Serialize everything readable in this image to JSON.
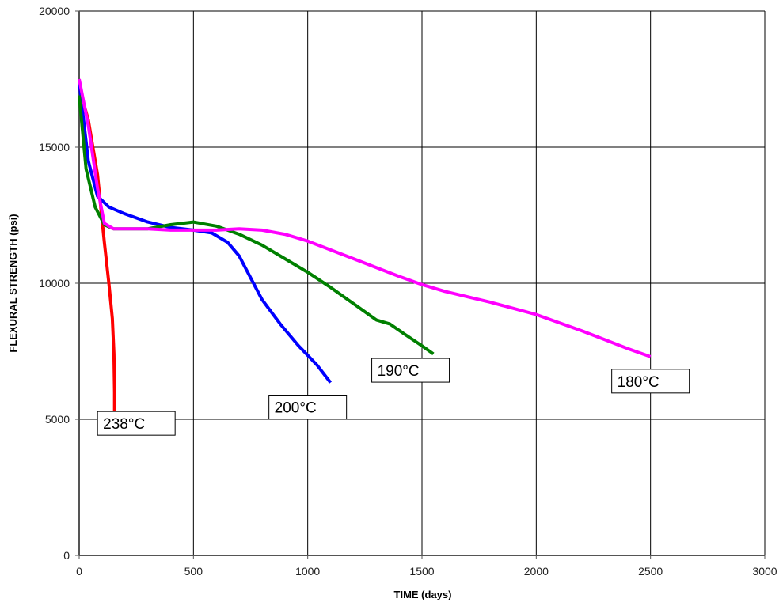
{
  "chart_data": {
    "type": "line",
    "title": "",
    "xlabel": "TIME (days)",
    "ylabel": "FLEXURAL STRENGTH (psi)",
    "xlim": [
      0,
      3000
    ],
    "ylim": [
      0,
      20000
    ],
    "xticks": [
      0,
      500,
      1000,
      1500,
      2000,
      2500,
      3000
    ],
    "yticks": [
      0,
      5000,
      10000,
      15000,
      20000
    ],
    "xtick_labels": [
      "0",
      "500",
      "1000",
      "1500",
      "2000",
      "2500",
      "3000"
    ],
    "ytick_labels": [
      "0",
      "5000",
      "10000",
      "15000",
      "20000"
    ],
    "grid": true,
    "legend": "none",
    "series": [
      {
        "name": "238°C",
        "color": "#ff0000",
        "x": [
          0,
          40,
          80,
          110,
          130,
          145,
          152,
          155,
          155
        ],
        "y": [
          17200,
          16000,
          14000,
          11500,
          10000,
          8700,
          7400,
          6000,
          5000
        ]
      },
      {
        "name": "200°C",
        "color": "#0000ff",
        "x": [
          0,
          40,
          80,
          130,
          200,
          300,
          400,
          500,
          580,
          650,
          700,
          750,
          800,
          880,
          960,
          1040,
          1100
        ],
        "y": [
          17400,
          14500,
          13200,
          12800,
          12550,
          12250,
          12050,
          11950,
          11850,
          11500,
          11000,
          10200,
          9400,
          8500,
          7700,
          7000,
          6350
        ]
      },
      {
        "name": "190°C",
        "color": "#008000",
        "x": [
          0,
          30,
          70,
          110,
          150,
          200,
          300,
          400,
          500,
          600,
          700,
          800,
          900,
          1000,
          1100,
          1200,
          1300,
          1360,
          1420,
          1500,
          1550
        ],
        "y": [
          16900,
          14200,
          12800,
          12150,
          12000,
          12000,
          12000,
          12150,
          12250,
          12100,
          11800,
          11400,
          10900,
          10400,
          9850,
          9250,
          8650,
          8500,
          8150,
          7700,
          7400
        ]
      },
      {
        "name": "180°C",
        "color": "#ff00ff",
        "x": [
          0,
          40,
          80,
          110,
          150,
          200,
          300,
          400,
          500,
          600,
          700,
          800,
          900,
          1000,
          1200,
          1400,
          1500,
          1600,
          1800,
          2000,
          2200,
          2400,
          2500
        ],
        "y": [
          17500,
          15800,
          13500,
          12200,
          12000,
          12000,
          12000,
          11950,
          11950,
          11950,
          12000,
          11950,
          11800,
          11550,
          10900,
          10250,
          9950,
          9700,
          9300,
          8850,
          8250,
          7600,
          7300
        ]
      }
    ],
    "annotations": [
      {
        "text": "238°C",
        "x": 250,
        "y": 4850
      },
      {
        "text": "200°C",
        "x": 1000,
        "y": 5450
      },
      {
        "text": "190°C",
        "x": 1450,
        "y": 6800
      },
      {
        "text": "180°C",
        "x": 2500,
        "y": 6400
      }
    ]
  }
}
